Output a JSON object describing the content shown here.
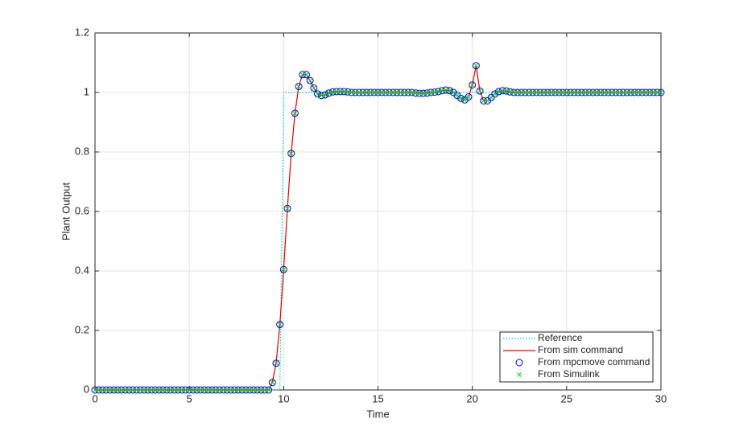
{
  "chart_data": {
    "type": "line",
    "x_label": "Time",
    "y_label": "Plant Output",
    "xlim": [
      0,
      30
    ],
    "xticks": [
      0,
      5,
      10,
      15,
      20,
      25,
      30
    ],
    "ylim": [
      0,
      1.2
    ],
    "yticks": [
      0,
      0.2,
      0.4,
      0.6,
      0.8,
      1,
      1.2
    ],
    "grid": true,
    "legend": "lower right",
    "x": [
      0,
      0.2,
      0.4,
      0.6,
      0.8,
      1,
      1.2,
      1.4,
      1.6,
      1.8,
      2,
      2.2,
      2.4,
      2.6,
      2.8,
      3,
      3.2,
      3.4,
      3.6,
      3.8,
      4,
      4.2,
      4.4,
      4.6,
      4.8,
      5,
      5.2,
      5.4,
      5.6,
      5.8,
      6,
      6.2,
      6.4,
      6.6,
      6.8,
      7,
      7.2,
      7.4,
      7.6,
      7.8,
      8,
      8.2,
      8.4,
      8.6,
      8.8,
      9,
      9.2,
      9.4,
      9.6,
      9.8,
      10,
      10.2,
      10.4,
      10.6,
      10.8,
      11,
      11.2,
      11.4,
      11.6,
      11.8,
      12,
      12.2,
      12.4,
      12.6,
      12.8,
      13,
      13.2,
      13.4,
      13.6,
      13.8,
      14,
      14.2,
      14.4,
      14.6,
      14.8,
      15,
      15.2,
      15.4,
      15.6,
      15.8,
      16,
      16.2,
      16.4,
      16.6,
      16.8,
      17,
      17.2,
      17.4,
      17.6,
      17.8,
      18,
      18.2,
      18.4,
      18.6,
      18.8,
      19,
      19.2,
      19.4,
      19.6,
      19.8,
      20,
      20.2,
      20.4,
      20.6,
      20.8,
      21,
      21.2,
      21.4,
      21.6,
      21.8,
      22,
      22.2,
      22.4,
      22.6,
      22.8,
      23,
      23.2,
      23.4,
      23.6,
      23.8,
      24,
      24.2,
      24.4,
      24.6,
      24.8,
      25,
      25.2,
      25.4,
      25.6,
      25.8,
      26,
      26.2,
      26.4,
      26.6,
      26.8,
      27,
      27.2,
      27.4,
      27.6,
      27.8,
      28,
      28.2,
      28.4,
      28.6,
      28.8,
      29,
      29.2,
      29.4,
      29.6,
      29.8,
      30
    ],
    "series": [
      {
        "name": "Reference",
        "color": "#00cccc",
        "style": "dotted",
        "marker": "none",
        "values": [
          0,
          0,
          0,
          0,
          0,
          0,
          0,
          0,
          0,
          0,
          0,
          0,
          0,
          0,
          0,
          0,
          0,
          0,
          0,
          0,
          0,
          0,
          0,
          0,
          0,
          0,
          0,
          0,
          0,
          0,
          0,
          0,
          0,
          0,
          0,
          0,
          0,
          0,
          0,
          0,
          0,
          0,
          0,
          0,
          0,
          0,
          0,
          0,
          0,
          0,
          1,
          1,
          1,
          1,
          1,
          1,
          1,
          1,
          1,
          1,
          1,
          1,
          1,
          1,
          1,
          1,
          1,
          1,
          1,
          1,
          1,
          1,
          1,
          1,
          1,
          1,
          1,
          1,
          1,
          1,
          1,
          1,
          1,
          1,
          1,
          1,
          1,
          1,
          1,
          1,
          1,
          1,
          1,
          1,
          1,
          1,
          1,
          1,
          1,
          1,
          1,
          1,
          1,
          1,
          1,
          1,
          1,
          1,
          1,
          1,
          1,
          1,
          1,
          1,
          1,
          1,
          1,
          1,
          1,
          1,
          1,
          1,
          1,
          1,
          1,
          1,
          1,
          1,
          1,
          1,
          1,
          1,
          1,
          1,
          1,
          1,
          1,
          1,
          1,
          1,
          1,
          1,
          1,
          1,
          1,
          1,
          1,
          1,
          1,
          1,
          1
        ]
      },
      {
        "name": "From sim command",
        "color": "#e00000",
        "style": "solid",
        "marker": "none",
        "values": [
          0,
          0,
          0,
          0,
          0,
          0,
          0,
          0,
          0,
          0,
          0,
          0,
          0,
          0,
          0,
          0,
          0,
          0,
          0,
          0,
          0,
          0,
          0,
          0,
          0,
          0,
          0,
          0,
          0,
          0,
          0,
          0,
          0,
          0,
          0,
          0,
          0,
          0,
          0,
          0,
          0,
          0,
          0,
          0,
          0,
          0,
          0,
          0.025,
          0.09,
          0.22,
          0.405,
          0.61,
          0.795,
          0.93,
          1.02,
          1.06,
          1.06,
          1.04,
          1.015,
          0.995,
          0.99,
          0.992,
          0.998,
          1.002,
          1.003,
          1.003,
          1.003,
          1.002,
          1,
          1,
          1,
          1,
          1,
          1,
          1,
          1,
          1,
          1,
          1,
          1,
          1,
          1,
          1,
          1,
          1,
          0.998,
          0.997,
          0.997,
          0.998,
          1,
          1.001,
          1.003,
          1.006,
          1.008,
          1.006,
          1,
          0.99,
          0.98,
          0.975,
          0.985,
          1.025,
          1.09,
          1.005,
          0.972,
          0.972,
          0.983,
          0.995,
          1.003,
          1.006,
          1.005,
          1.002,
          1,
          1,
          1,
          1,
          1,
          1,
          1,
          1,
          1,
          1,
          1,
          1,
          1,
          1,
          1,
          1,
          1,
          1,
          1,
          1,
          1,
          1,
          1,
          1,
          1,
          1,
          1,
          1,
          1,
          1,
          1,
          1,
          1,
          1,
          1,
          1,
          1,
          1,
          1,
          1
        ]
      },
      {
        "name": "From mpcmove command",
        "color": "#0000ff",
        "style": "none",
        "marker": "o",
        "values": [
          0,
          0,
          0,
          0,
          0,
          0,
          0,
          0,
          0,
          0,
          0,
          0,
          0,
          0,
          0,
          0,
          0,
          0,
          0,
          0,
          0,
          0,
          0,
          0,
          0,
          0,
          0,
          0,
          0,
          0,
          0,
          0,
          0,
          0,
          0,
          0,
          0,
          0,
          0,
          0,
          0,
          0,
          0,
          0,
          0,
          0,
          0,
          0.025,
          0.09,
          0.22,
          0.405,
          0.61,
          0.795,
          0.93,
          1.02,
          1.06,
          1.06,
          1.04,
          1.015,
          0.995,
          0.99,
          0.992,
          0.998,
          1.002,
          1.003,
          1.003,
          1.003,
          1.002,
          1,
          1,
          1,
          1,
          1,
          1,
          1,
          1,
          1,
          1,
          1,
          1,
          1,
          1,
          1,
          1,
          1,
          0.998,
          0.997,
          0.997,
          0.998,
          1,
          1.001,
          1.003,
          1.006,
          1.008,
          1.006,
          1,
          0.99,
          0.98,
          0.975,
          0.985,
          1.025,
          1.09,
          1.005,
          0.972,
          0.972,
          0.983,
          0.995,
          1.003,
          1.006,
          1.005,
          1.002,
          1,
          1,
          1,
          1,
          1,
          1,
          1,
          1,
          1,
          1,
          1,
          1,
          1,
          1,
          1,
          1,
          1,
          1,
          1,
          1,
          1,
          1,
          1,
          1,
          1,
          1,
          1,
          1,
          1,
          1,
          1,
          1,
          1,
          1,
          1,
          1,
          1,
          1,
          1,
          1
        ]
      },
      {
        "name": "From Simulink",
        "color": "#00dd00",
        "style": "none",
        "marker": "x",
        "values": [
          0,
          0,
          0,
          0,
          0,
          0,
          0,
          0,
          0,
          0,
          0,
          0,
          0,
          0,
          0,
          0,
          0,
          0,
          0,
          0,
          0,
          0,
          0,
          0,
          0,
          0,
          0,
          0,
          0,
          0,
          0,
          0,
          0,
          0,
          0,
          0,
          0,
          0,
          0,
          0,
          0,
          0,
          0,
          0,
          0,
          0,
          0,
          0.025,
          0.09,
          0.22,
          0.405,
          0.61,
          0.795,
          0.93,
          1.02,
          1.06,
          1.06,
          1.04,
          1.015,
          0.995,
          0.99,
          0.992,
          0.998,
          1.002,
          1.003,
          1.003,
          1.003,
          1.002,
          1,
          1,
          1,
          1,
          1,
          1,
          1,
          1,
          1,
          1,
          1,
          1,
          1,
          1,
          1,
          1,
          1,
          0.998,
          0.997,
          0.997,
          0.998,
          1,
          1.001,
          1.003,
          1.006,
          1.008,
          1.006,
          1,
          0.99,
          0.98,
          0.975,
          0.985,
          1.025,
          1.09,
          1.005,
          0.972,
          0.972,
          0.983,
          0.995,
          1.003,
          1.006,
          1.005,
          1.002,
          1,
          1,
          1,
          1,
          1,
          1,
          1,
          1,
          1,
          1,
          1,
          1,
          1,
          1,
          1,
          1,
          1,
          1,
          1,
          1,
          1,
          1,
          1,
          1,
          1,
          1,
          1,
          1,
          1,
          1,
          1,
          1,
          1,
          1,
          1,
          1,
          1,
          1,
          1,
          1
        ]
      }
    ]
  }
}
